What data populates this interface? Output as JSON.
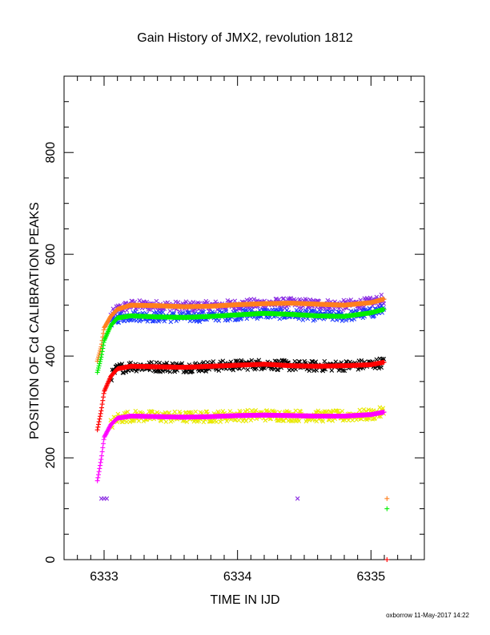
{
  "chart_data": {
    "type": "scatter",
    "title": "Gain History of JMX2, revolution 1812",
    "xlabel": "TIME IN IJD",
    "ylabel": "POSITION OF Cd CALIBRATION PEAKS",
    "xlim": [
      6332.7,
      6335.4
    ],
    "ylim": [
      0,
      950
    ],
    "x_ticks": [
      6333,
      6334,
      6335
    ],
    "x_tick_labels": [
      "6333",
      "6334",
      "6335"
    ],
    "y_ticks": [
      0,
      200,
      400,
      600,
      800
    ],
    "y_tick_labels": [
      "0",
      "200",
      "400",
      "600",
      "800"
    ],
    "grid": false,
    "footer": "oxborrow 11-May-2017 14:22",
    "series": [
      {
        "color": "#ff7f1e",
        "marker": "plus",
        "role": "fit",
        "x": [
          6332.95,
          6332.98,
          6333.0,
          6333.05,
          6333.1,
          6333.2,
          6333.4,
          6333.6,
          6333.8,
          6334.0,
          6334.2,
          6334.4,
          6334.6,
          6334.8,
          6335.0,
          6335.1
        ],
        "y": [
          390,
          420,
          455,
          478,
          492,
          500,
          499,
          497,
          498,
          501,
          503,
          504,
          502,
          500,
          505,
          512
        ]
      },
      {
        "color": "#8a2be2",
        "marker": "cross",
        "role": "raw",
        "center": "#ff7f1e",
        "spread": 10,
        "x": [
          6333.05,
          6335.1
        ],
        "y": [
          490,
          515
        ]
      },
      {
        "color": "#00ee00",
        "marker": "plus",
        "role": "fit",
        "x": [
          6332.95,
          6332.98,
          6333.0,
          6333.05,
          6333.1,
          6333.2,
          6333.4,
          6333.6,
          6333.8,
          6334.0,
          6334.2,
          6334.4,
          6334.6,
          6334.8,
          6335.0,
          6335.1
        ],
        "y": [
          368,
          400,
          430,
          460,
          475,
          479,
          477,
          476,
          478,
          481,
          484,
          482,
          479,
          478,
          485,
          492
        ]
      },
      {
        "color": "#1e3cff",
        "marker": "cross",
        "role": "raw",
        "center": "#00ee00",
        "spread": 10,
        "x": [
          6333.05,
          6335.1
        ],
        "y": [
          470,
          490
        ]
      },
      {
        "color": "#000000",
        "marker": "cross",
        "role": "raw",
        "center": "#ff0000",
        "spread": 10,
        "x": [
          6333.05,
          6335.1
        ],
        "y": [
          380,
          390
        ]
      },
      {
        "color": "#ff0000",
        "marker": "plus",
        "role": "fit",
        "x": [
          6332.95,
          6332.98,
          6333.0,
          6333.05,
          6333.1,
          6333.2,
          6333.4,
          6333.6,
          6333.8,
          6334.0,
          6334.2,
          6334.4,
          6334.6,
          6334.8,
          6335.0,
          6335.1
        ],
        "y": [
          255,
          295,
          330,
          360,
          375,
          380,
          379,
          378,
          380,
          382,
          384,
          381,
          380,
          381,
          383,
          388
        ]
      },
      {
        "color": "#e8e800",
        "marker": "cross",
        "role": "raw",
        "center": "#ff00ff",
        "spread": 11,
        "x": [
          6333.05,
          6335.1
        ],
        "y": [
          280,
          290
        ]
      },
      {
        "color": "#ff00ff",
        "marker": "plus",
        "role": "fit",
        "x": [
          6332.95,
          6332.98,
          6333.0,
          6333.05,
          6333.1,
          6333.2,
          6333.4,
          6333.6,
          6333.8,
          6334.0,
          6334.2,
          6334.4,
          6334.6,
          6334.8,
          6335.0,
          6335.1
        ],
        "y": [
          155,
          200,
          240,
          265,
          278,
          282,
          281,
          280,
          281,
          283,
          284,
          283,
          282,
          282,
          285,
          290
        ]
      },
      {
        "color": "#8a2be2",
        "marker": "cross",
        "role": "outlier",
        "x": [
          6332.98,
          6333.0,
          6333.02,
          6334.45
        ],
        "y": [
          120,
          120,
          120,
          120
        ]
      },
      {
        "color": "#ff7f1e",
        "marker": "plus",
        "role": "outlier",
        "x": [
          6335.12
        ],
        "y": [
          120
        ]
      },
      {
        "color": "#00ee00",
        "marker": "plus",
        "role": "outlier",
        "x": [
          6335.12
        ],
        "y": [
          100
        ]
      },
      {
        "color": "#ff0000",
        "marker": "plus",
        "role": "outlier",
        "x": [
          6335.12
        ],
        "y": [
          0
        ]
      }
    ]
  }
}
